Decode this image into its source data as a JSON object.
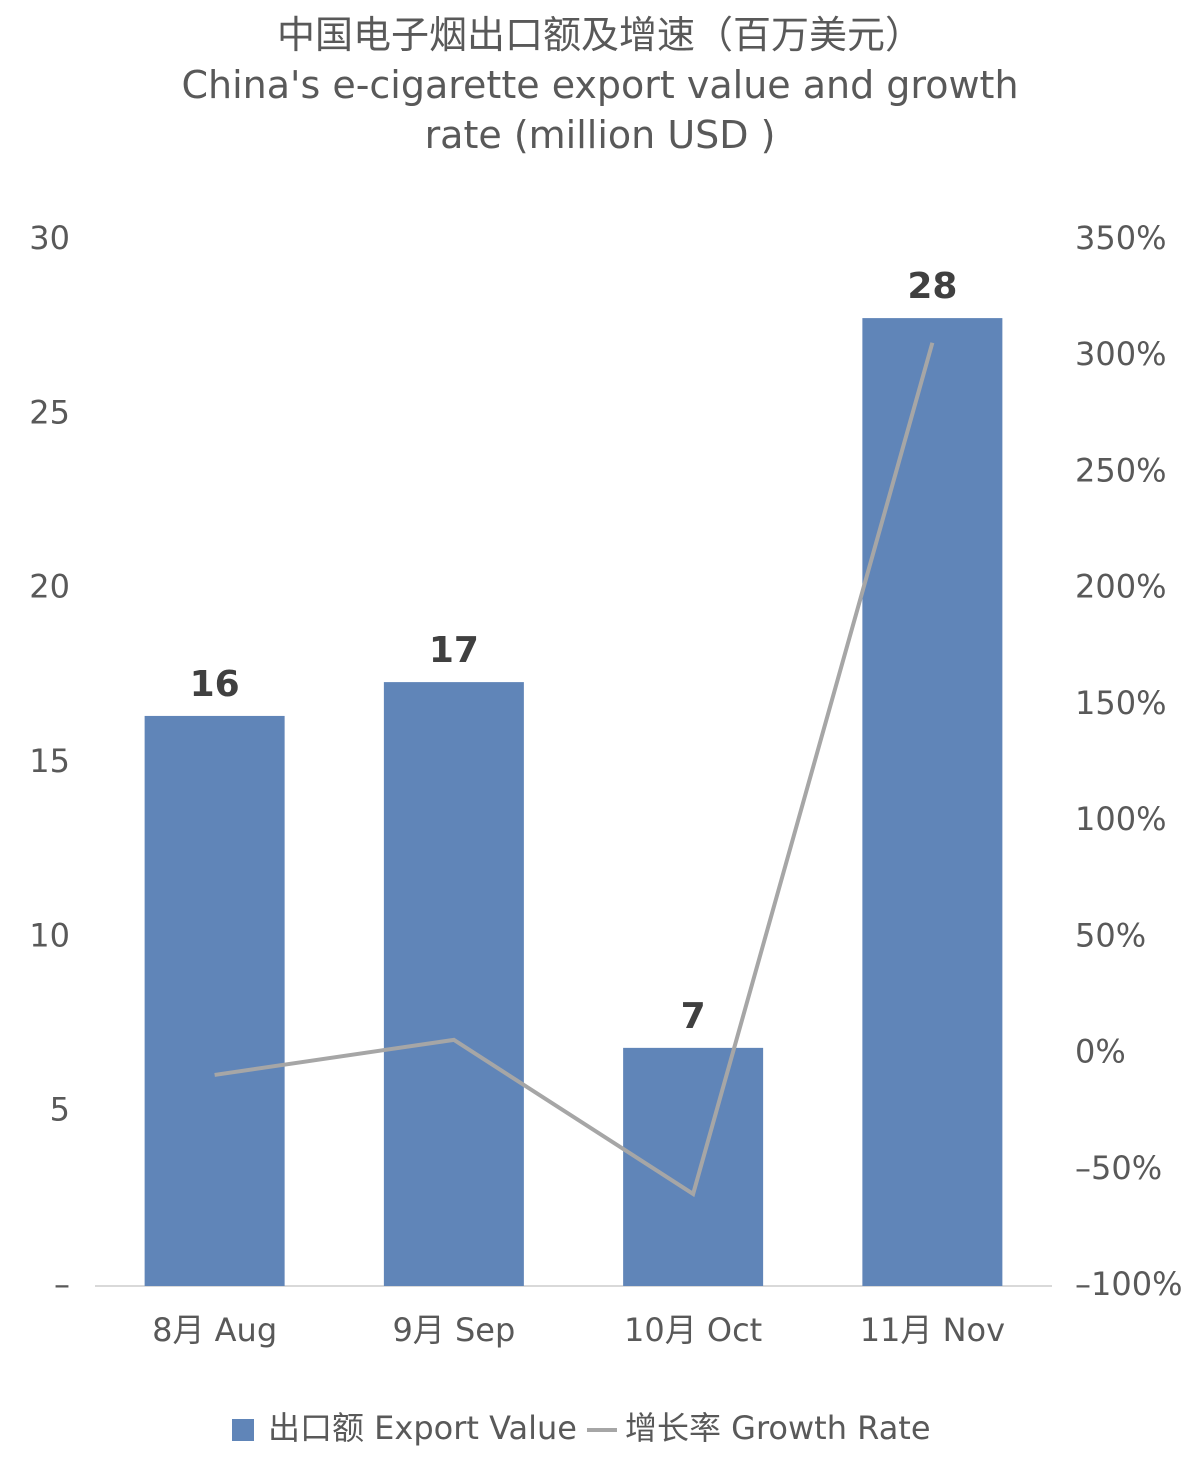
{
  "chart_data": {
    "type": "bar",
    "title": "中国电子烟出口额及增速（百万美元）",
    "subtitle": "China's e-cigarette export value and growth rate (million USD )",
    "categories": [
      "8月 Aug",
      "9月 Sep",
      "10月 Oct",
      "11月 Nov"
    ],
    "series": [
      {
        "name": "出口额 Export Value",
        "type": "bar",
        "color": "#6085b8",
        "values": [
          16.35,
          17.32,
          6.83,
          27.76
        ],
        "value_labels": [
          "16",
          "17",
          "7",
          "28"
        ]
      },
      {
        "name": "增长率 Growth Rate",
        "type": "line",
        "axis": "y2",
        "color": "#a6a6a6",
        "values": [
          -9.2,
          5.9,
          -60.4,
          305.8
        ]
      }
    ],
    "ylim": [
      0,
      30
    ],
    "yticks": [
      {
        "value": 0,
        "label": "–"
      },
      5,
      10,
      15,
      20,
      25,
      30
    ],
    "y2lim": [
      -100,
      350
    ],
    "y2ticks": [
      {
        "value": -100,
        "label": "–100%"
      },
      {
        "value": -50,
        "label": "–50%"
      },
      {
        "value": 0,
        "label": "0%"
      },
      {
        "value": 50,
        "label": "50%"
      },
      {
        "value": 100,
        "label": "100%"
      },
      {
        "value": 150,
        "label": "150%"
      },
      {
        "value": 200,
        "label": "200%"
      },
      {
        "value": 250,
        "label": "250%"
      },
      {
        "value": 300,
        "label": "300%"
      },
      {
        "value": 350,
        "label": "350%"
      }
    ],
    "legend": "bottom"
  }
}
